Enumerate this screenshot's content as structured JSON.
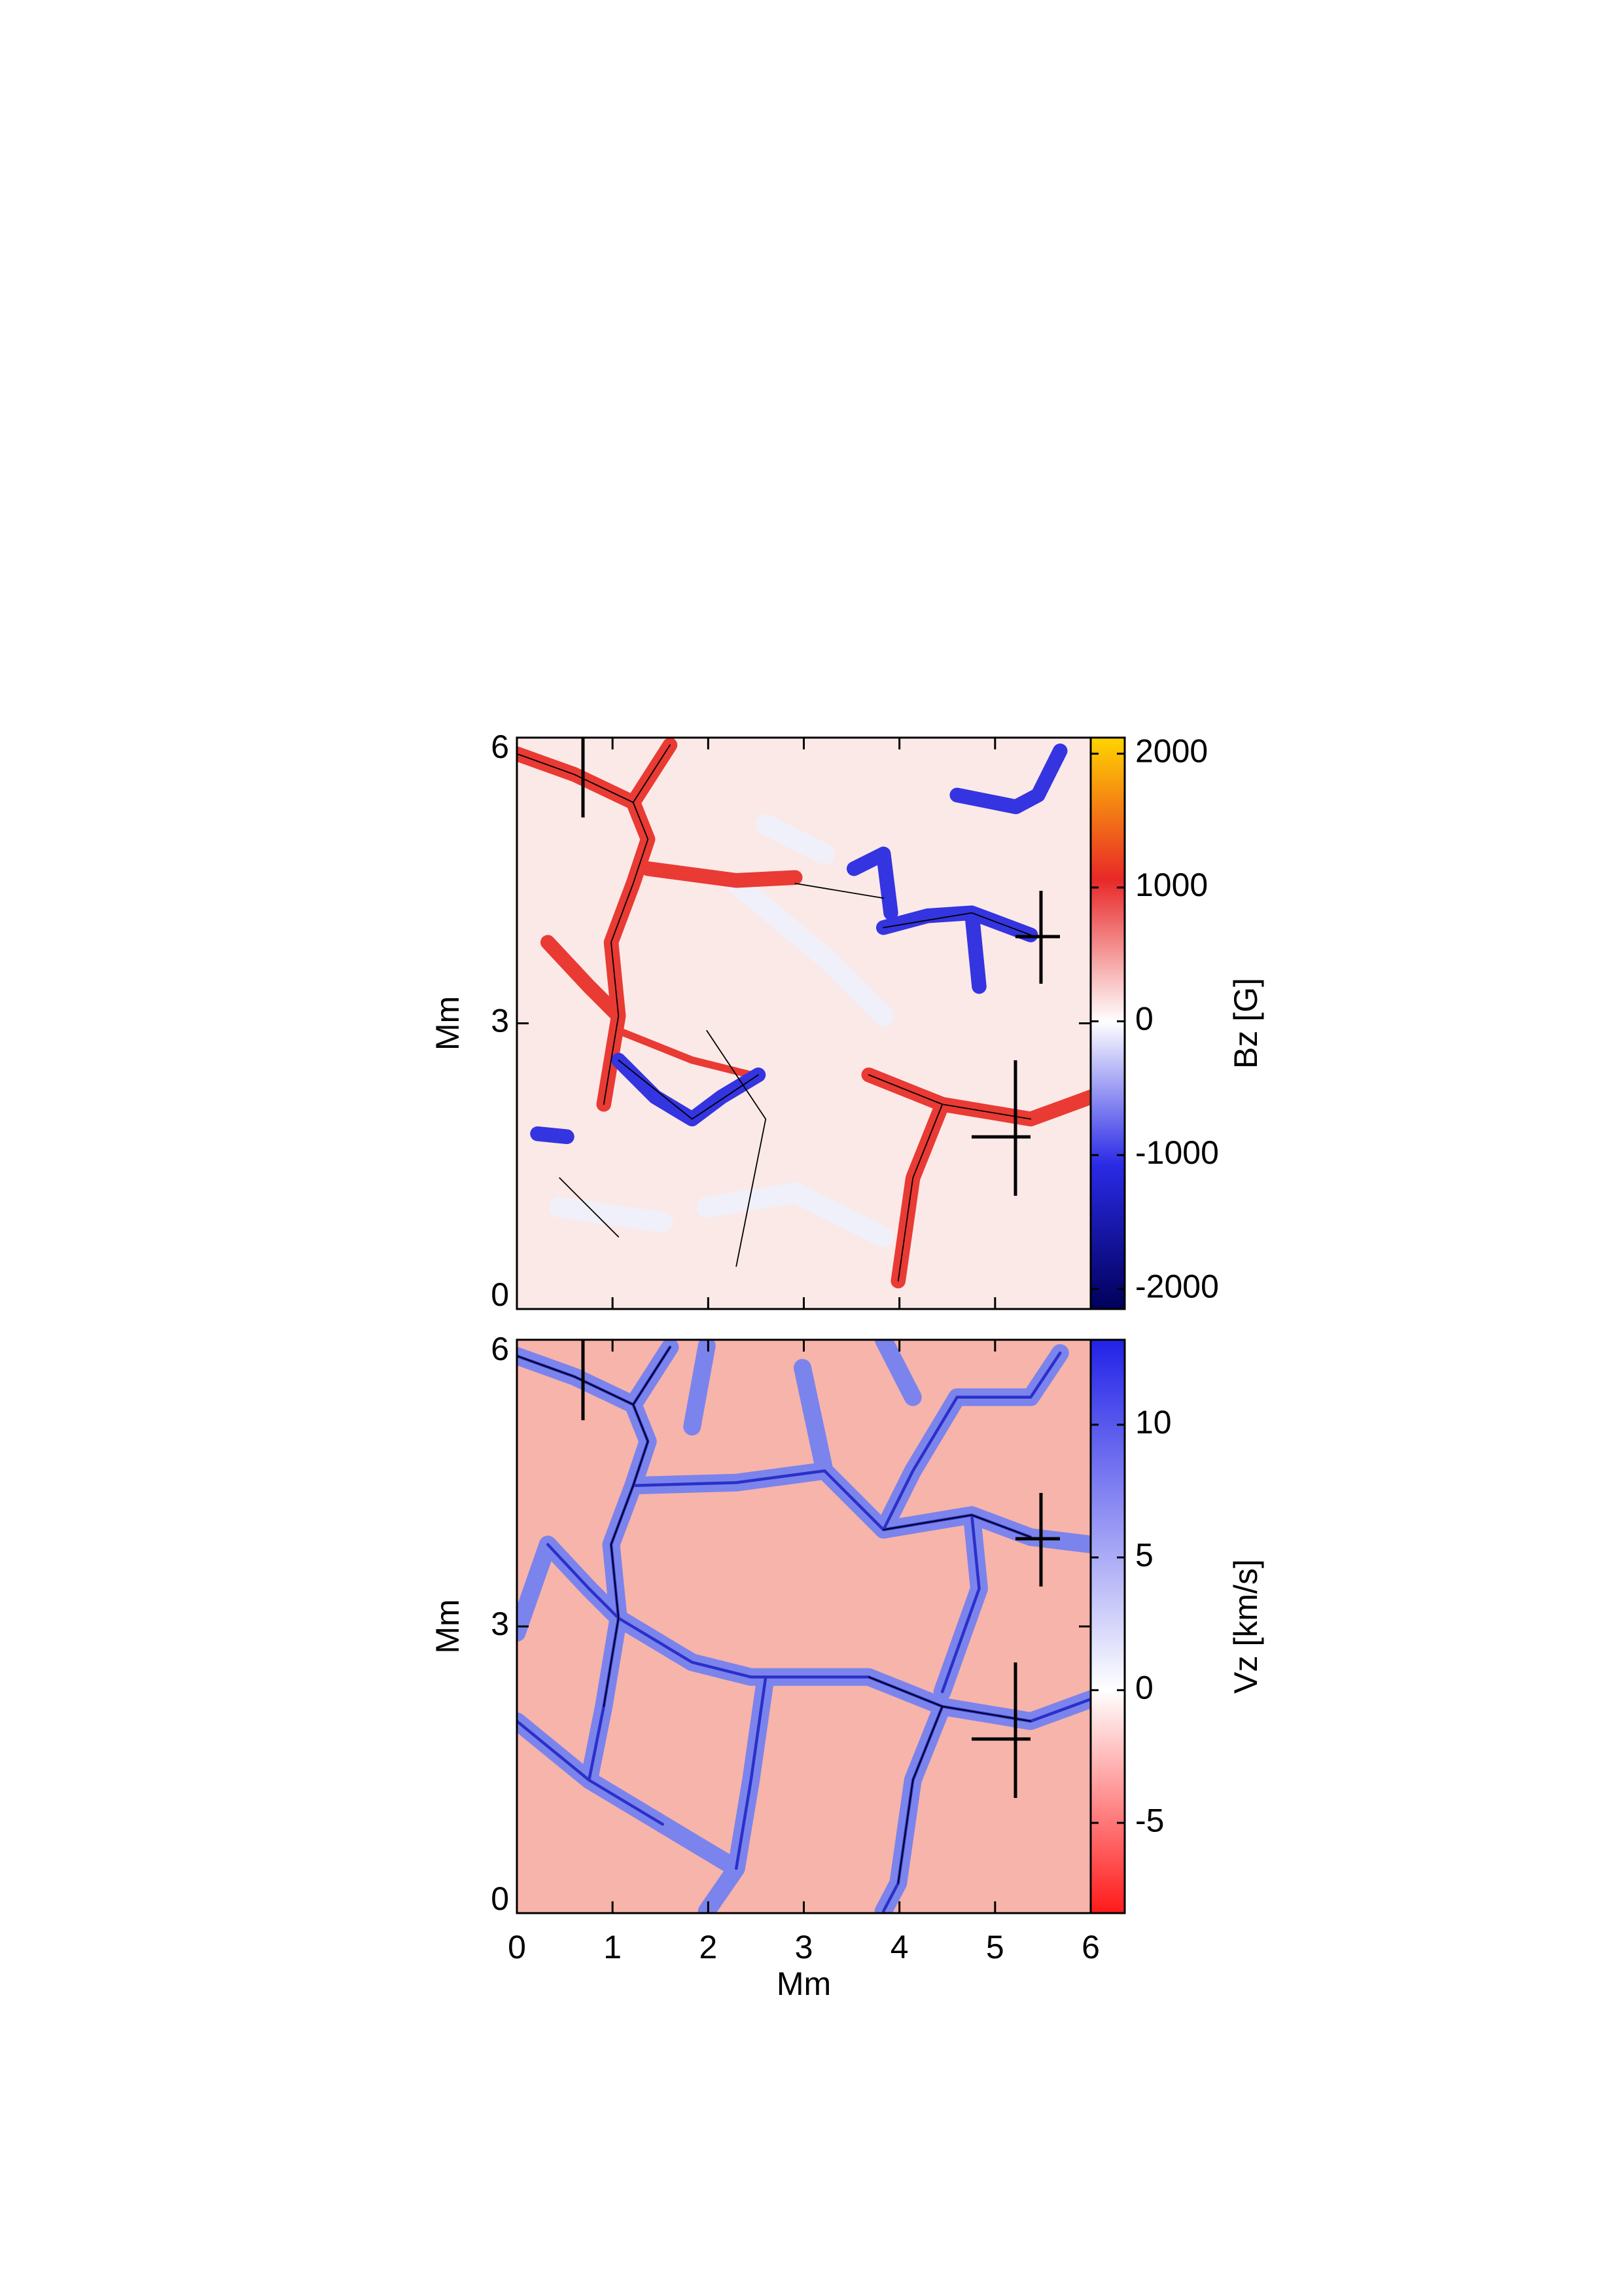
{
  "chart_data": [
    {
      "type": "heatmap",
      "ylabel": "Mm",
      "colorbar_label": "Bz [G]",
      "xlim": [
        0,
        6
      ],
      "ylim": [
        0,
        6
      ],
      "yticks": [
        0,
        3,
        6
      ],
      "clim": [
        -2150,
        2120
      ],
      "cticks": [
        -2000,
        -1000,
        0,
        1000,
        2000
      ],
      "colormap": {
        "negative": [
          "#00005a",
          "#2a2ae6",
          "#ffffff"
        ],
        "positive": [
          "#ffffff",
          "#e82828",
          "#ffd400"
        ]
      }
    },
    {
      "type": "heatmap",
      "xlabel": "Mm",
      "ylabel": "Mm",
      "colorbar_label": "Vz [km/s]",
      "xlim": [
        0,
        6
      ],
      "ylim": [
        0,
        6
      ],
      "xticks": [
        0,
        1,
        2,
        3,
        4,
        5,
        6
      ],
      "yticks": [
        0,
        3,
        6
      ],
      "clim": [
        -8.4,
        13.2
      ],
      "cticks": [
        -5,
        0,
        5,
        10
      ],
      "colormap": {
        "negative": [
          "#ff1a1a",
          "#ffffff"
        ],
        "positive": [
          "#ffffff",
          "#2222e8"
        ]
      }
    }
  ]
}
